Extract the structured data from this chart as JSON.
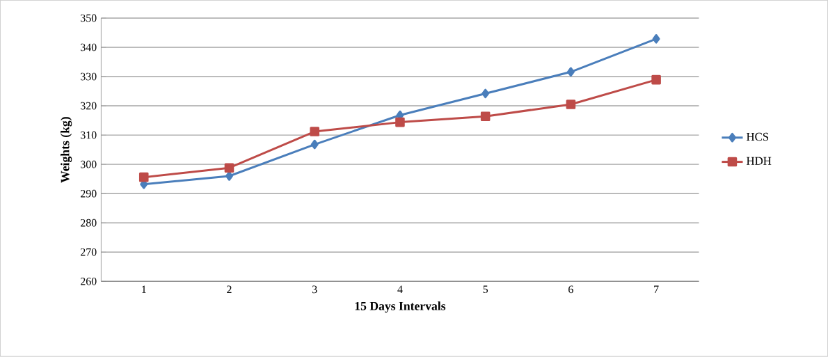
{
  "chart_data": {
    "type": "line",
    "xlabel": "15 Days Intervals",
    "ylabel": "Weights (kg)",
    "categories": [
      "1",
      "2",
      "3",
      "4",
      "5",
      "6",
      "7"
    ],
    "series": [
      {
        "name": "HCS",
        "color": "#4a7ebb",
        "marker": "diamond",
        "values": [
          293.2,
          296,
          306.8,
          316.8,
          324.2,
          331.6,
          342.9
        ]
      },
      {
        "name": "HDH",
        "color": "#be4b48",
        "marker": "square",
        "values": [
          295.6,
          298.8,
          311.2,
          314.4,
          316.4,
          320.5,
          328.9
        ]
      }
    ],
    "ylim": [
      260,
      350
    ],
    "yticks": [
      260,
      270,
      280,
      290,
      300,
      310,
      320,
      330,
      340,
      350
    ],
    "grid": "y",
    "legend": "right"
  }
}
